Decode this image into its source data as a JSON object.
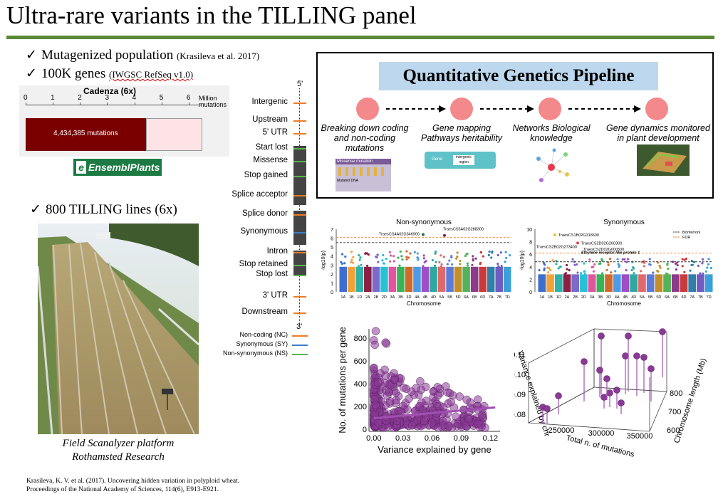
{
  "title": "Ultra-rare variants in the TILLING panel",
  "bullets": [
    {
      "text": "Mutagenized population ",
      "ref": "(Krasileva et al. 2017)"
    },
    {
      "text": "100K genes ",
      "ref": "(IWGSC RefSeq v1.0)"
    },
    {
      "text": "800 TILLING lines (6x)",
      "ref": ""
    }
  ],
  "cadenza": {
    "title": "Cadenza (6x)",
    "axis_label": "Million mutations",
    "ticks": [
      "0",
      "1",
      "2",
      "3",
      "4",
      "5",
      "6"
    ],
    "bar_label": "4,434,385 mutations",
    "value": 4.434385,
    "max": 6.5,
    "logo": "EnsemblPlants",
    "colors": {
      "bar": "#7a0000",
      "rest": "#fde3e5"
    }
  },
  "gene_model": {
    "top_label": "5'",
    "bottom_label": "3'",
    "labels": [
      "Intergenic",
      "Upstream",
      "5' UTR",
      "Start lost",
      "Missense",
      "Stop gained",
      "Splice acceptor",
      "Splice donor",
      "Synonymous",
      "Intron",
      "Stop retained",
      "Stop lost",
      "3' UTR",
      "Downstream"
    ],
    "legend": [
      "Non-coding (NC)",
      "Synonymous (SY)",
      "Non-synonymous (NS)"
    ],
    "colors": {
      "nc": "#f07b22",
      "sy": "#3a7dc9",
      "ns": "#55b848"
    }
  },
  "photo_caption": [
    "Field Scanalyzer platform",
    "Rothamsted Research"
  ],
  "reference": [
    "Krasileva, K. V. et al. (2017). Uncovering hidden variation in polyploid wheat.",
    "Proceedings of the National Academy of Sciences, 114(6), E913-E921."
  ],
  "pipeline": {
    "title": "Quantitative Genetics Pipeline",
    "steps": [
      {
        "label": "Breaking down coding and non-coding mutations",
        "figure_text": [
          "Missense mutation",
          "Mutated DNA"
        ]
      },
      {
        "label": "Gene mapping Pathways heritability",
        "figure_text": [
          "Gene",
          "intergenic region"
        ]
      },
      {
        "label": "Networks Biological knowledge"
      },
      {
        "label": "Gene dynamics monitored in plant development"
      }
    ]
  },
  "chart_data": [
    {
      "type": "scatter",
      "title": "Non-synonymous",
      "xlabel": "Chromosome",
      "ylabel": "-log10(p)",
      "ylim": [
        0,
        7
      ],
      "yticks": [
        0,
        1,
        2,
        3,
        4,
        5,
        6,
        7
      ],
      "categories": [
        "1A",
        "1B",
        "1D",
        "2A",
        "2B",
        "2D",
        "3A",
        "3B",
        "3D",
        "4A",
        "4B",
        "4D",
        "5A",
        "5B",
        "5D",
        "6A",
        "6B",
        "6D",
        "7A",
        "7B",
        "7D"
      ],
      "thresholds": [
        {
          "value": 6.1,
          "color": "#f07b22"
        },
        {
          "value": 5.5,
          "color": "#333333"
        }
      ],
      "annotations": [
        "TraesCS4A02G346900",
        "TraesCS5A02G288300"
      ]
    },
    {
      "type": "scatter",
      "title": "Synonymous",
      "xlabel": "Chromosome",
      "ylabel": "-log10(p)",
      "ylim": [
        0,
        10
      ],
      "yticks": [
        0,
        2,
        4,
        6,
        8,
        10
      ],
      "categories": [
        "1A",
        "1B",
        "1D",
        "2A",
        "2B",
        "2D",
        "3A",
        "3B",
        "3D",
        "4A",
        "4B",
        "4D",
        "5A",
        "5B",
        "5D",
        "6A",
        "6B",
        "6D",
        "7A",
        "7B",
        "7D"
      ],
      "legend": [
        "Bonferroni",
        "FDR"
      ],
      "thresholds": [
        {
          "value": 6.2,
          "color": "#f07b22"
        },
        {
          "value": 4.8,
          "color": "#333333"
        }
      ],
      "annotations": [
        "TraesCS1B02G318600",
        "TraesCS2D02G260300",
        "TraesCS2B02G273400",
        "TraesCS2D02G000500",
        "Ethylene receptor-like protein 1"
      ]
    },
    {
      "type": "scatter",
      "xlabel": "Variance explained by gene",
      "ylabel": "No. of mutations per gene",
      "xlim": [
        -0.005,
        0.13
      ],
      "ylim": [
        -20,
        880
      ],
      "xticks": [
        "0.00",
        "0.03",
        "0.06",
        "0.09",
        "0.12"
      ],
      "yticks": [
        "0",
        "200",
        "400",
        "600",
        "800"
      ],
      "color": "#8a3a96"
    },
    {
      "type": "scatter",
      "xlabel": "Total n. of mutations",
      "ylabel": "Variance explained by chr",
      "zlabel": "Chromosome length (Mb)",
      "xticks": [
        "250000",
        "300000",
        "350000"
      ],
      "yticks": [
        "0.08",
        "0.09",
        "0.10",
        "0.11"
      ],
      "zticks": [
        "600",
        "700",
        "800"
      ],
      "color": "#8a3a96"
    }
  ]
}
